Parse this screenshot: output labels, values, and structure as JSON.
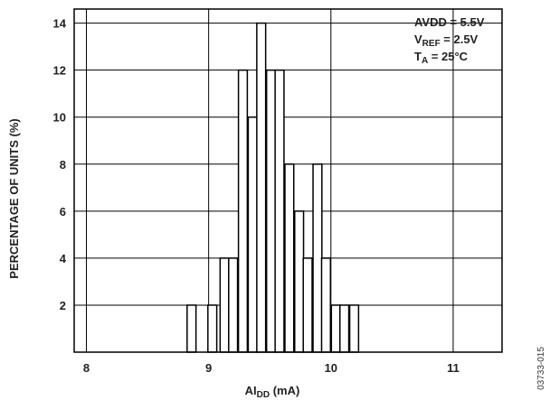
{
  "chart_data": {
    "type": "bar",
    "title": "",
    "xlabel": {
      "main": "AI",
      "sub": "DD",
      "unit": " (mA)"
    },
    "ylabel": "PERCENTAGE OF UNITS (%)",
    "xlim": [
      7.9,
      11.4
    ],
    "ylim": [
      0,
      14.6
    ],
    "xticks": [
      "8",
      "9",
      "10",
      "11"
    ],
    "xtick_values": [
      8,
      9,
      10,
      11
    ],
    "yticks": [
      "2",
      "4",
      "6",
      "8",
      "10",
      "12",
      "14"
    ],
    "ytick_values": [
      2,
      4,
      6,
      8,
      10,
      12,
      14
    ],
    "bin_width": 0.0725,
    "bins": [
      {
        "x": 8.86,
        "value": 2
      },
      {
        "x": 9.03,
        "value": 2
      },
      {
        "x": 9.13,
        "value": 4
      },
      {
        "x": 9.2,
        "value": 4
      },
      {
        "x": 9.28,
        "value": 12
      },
      {
        "x": 9.36,
        "value": 10
      },
      {
        "x": 9.43,
        "value": 14
      },
      {
        "x": 9.51,
        "value": 12
      },
      {
        "x": 9.58,
        "value": 12
      },
      {
        "x": 9.66,
        "value": 8
      },
      {
        "x": 9.74,
        "value": 6
      },
      {
        "x": 9.81,
        "value": 4
      },
      {
        "x": 9.89,
        "value": 8
      },
      {
        "x": 9.96,
        "value": 4
      },
      {
        "x": 10.04,
        "value": 2
      },
      {
        "x": 10.11,
        "value": 2
      },
      {
        "x": 10.19,
        "value": 2
      }
    ],
    "grid": true,
    "annotations": [
      {
        "main": "AVDD = 5.5V",
        "sub": "",
        "rest": ""
      },
      {
        "main": "V",
        "sub": "REF",
        "rest": " = 2.5V"
      },
      {
        "main": "T",
        "sub": "A",
        "rest": " = 25°C"
      }
    ],
    "annotation_placement": "top-right",
    "figure_id": "03733-015"
  }
}
